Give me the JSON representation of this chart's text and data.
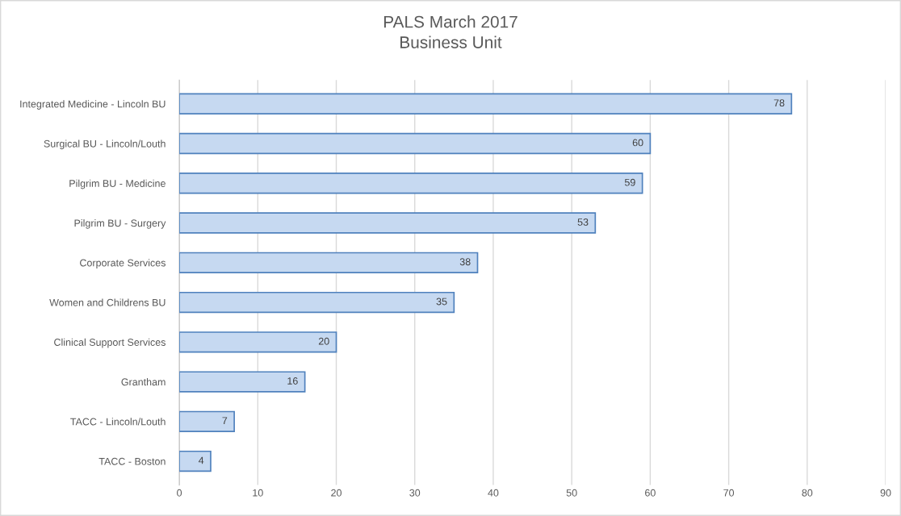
{
  "chart_data": {
    "type": "bar",
    "orientation": "horizontal",
    "title": "PALS March 2017\nBusiness Unit",
    "categories": [
      "Integrated Medicine - Lincoln BU",
      "Surgical BU - Lincoln/Louth",
      "Pilgrim BU - Medicine",
      "Pilgrim BU - Surgery",
      "Corporate Services",
      "Women and Childrens BU",
      "Clinical Support Services",
      "Grantham",
      "TACC - Lincoln/Louth",
      "TACC - Boston"
    ],
    "values": [
      78,
      60,
      59,
      53,
      38,
      35,
      20,
      16,
      7,
      4
    ],
    "color": "#c6d9f1",
    "xlim": [
      0,
      90
    ],
    "xticks": [
      0,
      10,
      20,
      30,
      40,
      50,
      60,
      70,
      80,
      90
    ],
    "grid": "x",
    "data_labels": true
  }
}
